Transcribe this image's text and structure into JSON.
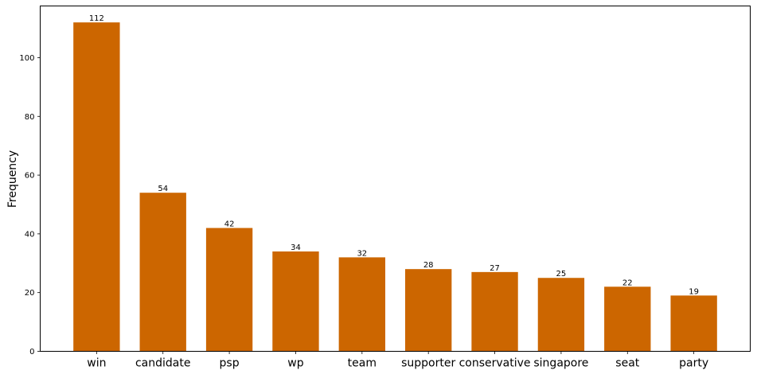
{
  "chart_data": {
    "type": "bar",
    "title": "",
    "xlabel": "",
    "ylabel": "Frequency",
    "categories": [
      "win",
      "candidate",
      "psp",
      "wp",
      "team",
      "supporter",
      "conservative",
      "singapore",
      "seat",
      "party"
    ],
    "values": [
      112,
      54,
      42,
      34,
      32,
      28,
      27,
      25,
      22,
      19
    ],
    "ylim": [
      0,
      117.6
    ],
    "yticks": [
      0,
      20,
      40,
      60,
      80,
      100
    ],
    "grid": false,
    "bar_color": "#cc6600",
    "show_value_labels": true
  }
}
